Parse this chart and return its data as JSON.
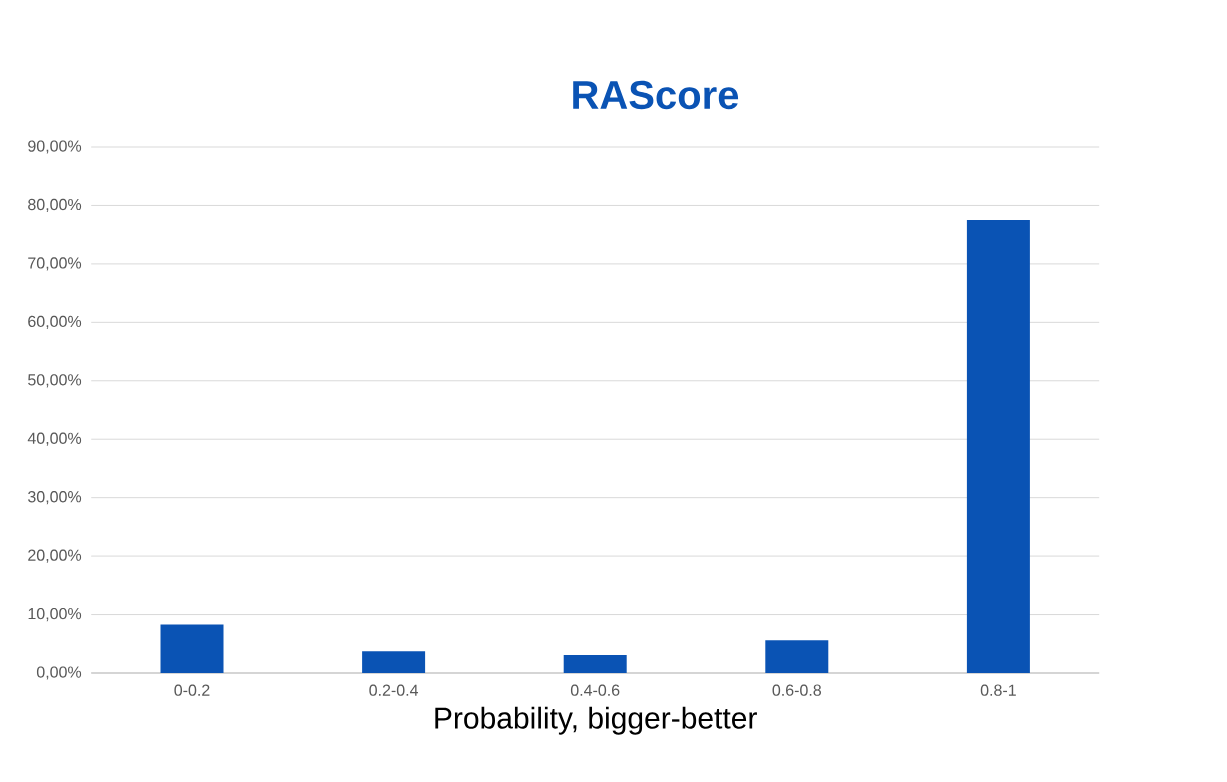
{
  "chart_data": {
    "type": "bar",
    "title": "RAScore",
    "xlabel": "Probability, bigger-better",
    "categories": [
      "0-0.2",
      "0.2-0.4",
      "0.4-0.6",
      "0.6-0.8",
      "0.8-1"
    ],
    "values": [
      8.3,
      3.7,
      3.1,
      5.6,
      77.5
    ],
    "color": "#0a53b4",
    "ylim": [
      0,
      90
    ],
    "yticks": [
      {
        "value": 0,
        "label": "0,00%"
      },
      {
        "value": 10,
        "label": "10,00%"
      },
      {
        "value": 20,
        "label": "20,00%"
      },
      {
        "value": 30,
        "label": "30,00%"
      },
      {
        "value": 40,
        "label": "40,00%"
      },
      {
        "value": 50,
        "label": "50,00%"
      },
      {
        "value": 60,
        "label": "60,00%"
      },
      {
        "value": 70,
        "label": "70,00%"
      },
      {
        "value": 80,
        "label": "80,00%"
      },
      {
        "value": 90,
        "label": "90,00%"
      }
    ],
    "grid": "y"
  }
}
